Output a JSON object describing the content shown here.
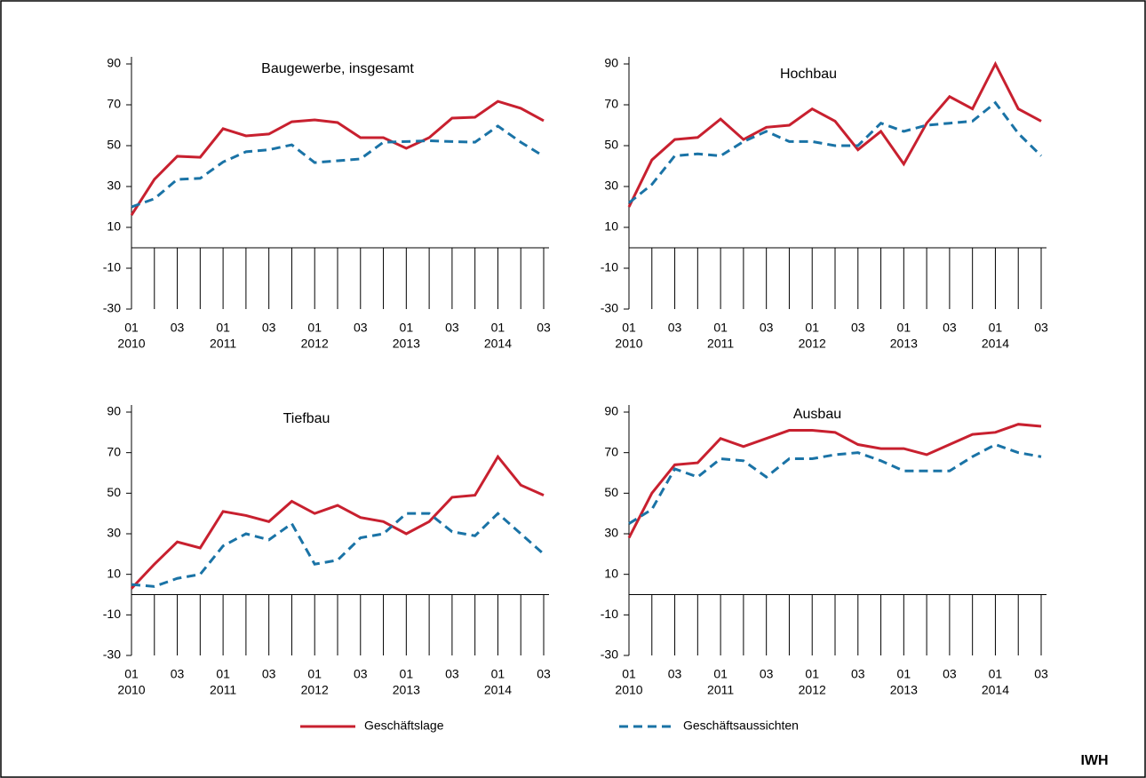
{
  "chart_data": [
    {
      "type": "line",
      "title": "Baugewerbe, insgesamt",
      "categories": [
        "01",
        null,
        "03",
        null,
        "01",
        null,
        "03",
        null,
        "01",
        null,
        "03",
        null,
        "01",
        null,
        "03",
        null,
        "01",
        null,
        "03"
      ],
      "years": [
        "2010",
        "2011",
        "2012",
        "2013",
        "2014"
      ],
      "series": [
        {
          "values": [
            16,
            33.5,
            44.8,
            44.3,
            58.3,
            54.8,
            55.7,
            61.7,
            62.6,
            61.3,
            53.9,
            53.9,
            48.7,
            53.9,
            63.5,
            63.9,
            71.7,
            68.3,
            62.2
          ]
        },
        {
          "values": [
            20,
            24,
            33.5,
            34,
            42,
            47,
            48,
            50.4,
            41.7,
            42.6,
            43.5,
            51.7,
            52,
            52.4,
            52,
            51.7,
            59.6,
            51.7,
            44.8
          ]
        }
      ],
      "ylim": [
        -30,
        90
      ],
      "yticks": [
        -30,
        -10,
        10,
        30,
        50,
        70,
        90
      ]
    },
    {
      "type": "line",
      "title": "Hochbau",
      "categories": [
        "01",
        null,
        "03",
        null,
        "01",
        null,
        "03",
        null,
        "01",
        null,
        "03",
        null,
        "01",
        null,
        "03",
        null,
        "01",
        null,
        "03"
      ],
      "years": [
        "2010",
        "2011",
        "2012",
        "2013",
        "2014"
      ],
      "series": [
        {
          "values": [
            20,
            43,
            53,
            54,
            63,
            53,
            59,
            60,
            68,
            62,
            48,
            57,
            41,
            61,
            74,
            68,
            90,
            68,
            62
          ]
        },
        {
          "values": [
            22,
            31,
            45,
            46,
            45,
            52,
            57,
            52,
            52,
            50,
            50,
            61,
            57,
            60,
            61,
            62,
            71,
            56,
            45
          ]
        }
      ],
      "ylim": [
        -30,
        90
      ],
      "yticks": [
        -30,
        -10,
        10,
        30,
        50,
        70,
        90
      ]
    },
    {
      "type": "line",
      "title": "Tiefbau",
      "categories": [
        "01",
        null,
        "03",
        null,
        "01",
        null,
        "03",
        null,
        "01",
        null,
        "03",
        null,
        "01",
        null,
        "03",
        null,
        "01",
        null,
        "03"
      ],
      "years": [
        "2010",
        "2011",
        "2012",
        "2013",
        "2014"
      ],
      "series": [
        {
          "values": [
            3,
            15,
            26,
            23,
            41,
            39,
            36,
            46,
            40,
            44,
            38,
            36,
            30,
            36,
            48,
            49,
            68,
            54,
            49
          ]
        },
        {
          "values": [
            5,
            4,
            8,
            10,
            24,
            30,
            27,
            35,
            15,
            17,
            28,
            30,
            40,
            40,
            31,
            29,
            40,
            30,
            20
          ]
        }
      ],
      "ylim": [
        -30,
        90
      ],
      "yticks": [
        -30,
        -10,
        10,
        30,
        50,
        70,
        90
      ]
    },
    {
      "type": "line",
      "title": "Ausbau",
      "categories": [
        "01",
        null,
        "03",
        null,
        "01",
        null,
        "03",
        null,
        "01",
        null,
        "03",
        null,
        "01",
        null,
        "03",
        null,
        "01",
        null,
        "03"
      ],
      "years": [
        "2010",
        "2011",
        "2012",
        "2013",
        "2014"
      ],
      "series": [
        {
          "values": [
            28,
            50,
            64,
            65,
            77,
            73,
            77,
            81,
            81,
            80,
            74,
            72,
            72,
            69,
            74,
            79,
            80,
            84,
            83
          ]
        },
        {
          "values": [
            35,
            42,
            62,
            58,
            67,
            66,
            58,
            67,
            67,
            69,
            70,
            66,
            61,
            61,
            61,
            68,
            74,
            70,
            68
          ]
        }
      ],
      "ylim": [
        -30,
        90
      ],
      "yticks": [
        -30,
        -10,
        10,
        30,
        50,
        70,
        90
      ]
    }
  ],
  "legend": [
    {
      "name": "Geschäftslage",
      "color": "#c8202f",
      "dashed": false
    },
    {
      "name": "Geschäftsaussichten",
      "color": "#1a73a6",
      "dashed": true
    }
  ],
  "source": "IWH"
}
